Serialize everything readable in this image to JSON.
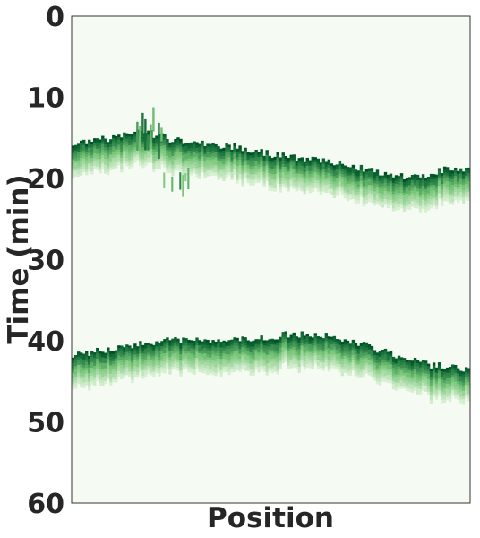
{
  "chart_data": {
    "type": "heatmap",
    "title": "",
    "xlabel": "Position",
    "ylabel": "Time (min)",
    "ylim": [
      0,
      60
    ],
    "y_inverted": true,
    "yticks": [
      0,
      10,
      20,
      30,
      40,
      50,
      60
    ],
    "ytick_labels": [
      "0",
      "10",
      "20",
      "30",
      "40",
      "50",
      "60"
    ],
    "xticks": [],
    "grid": false,
    "colormap": "Greens",
    "background_color": "#f5fbf3",
    "colors": {
      "light": "#d9f0d3",
      "mid": "#74c476",
      "dark": "#00592a"
    },
    "position_range": [
      0,
      1
    ],
    "bands": [
      {
        "onset_min": {
          "position": [
            0.0,
            0.05,
            0.1,
            0.15,
            0.2,
            0.25,
            0.3,
            0.35,
            0.4,
            0.45,
            0.5,
            0.55,
            0.6,
            0.65,
            0.7,
            0.75,
            0.8,
            0.85,
            0.9,
            0.95,
            1.0
          ],
          "time": [
            16.0,
            15.4,
            15.0,
            14.2,
            14.5,
            15.2,
            15.5,
            15.8,
            16.0,
            16.4,
            17.0,
            17.4,
            17.6,
            18.0,
            18.5,
            19.0,
            19.5,
            19.8,
            19.4,
            18.8,
            19.0
          ]
        },
        "width_min": 4.0
      },
      {
        "onset_min": {
          "position": [
            0.0,
            0.05,
            0.1,
            0.15,
            0.2,
            0.25,
            0.3,
            0.35,
            0.4,
            0.45,
            0.5,
            0.55,
            0.6,
            0.65,
            0.7,
            0.75,
            0.8,
            0.85,
            0.9,
            0.95,
            1.0
          ],
          "time": [
            41.9,
            41.4,
            41.0,
            40.6,
            40.2,
            39.9,
            40.0,
            40.0,
            39.8,
            39.7,
            39.5,
            39.2,
            39.3,
            39.5,
            40.0,
            40.8,
            41.6,
            42.3,
            43.0,
            43.2,
            43.6
          ]
        },
        "width_min": 4.0
      }
    ]
  }
}
